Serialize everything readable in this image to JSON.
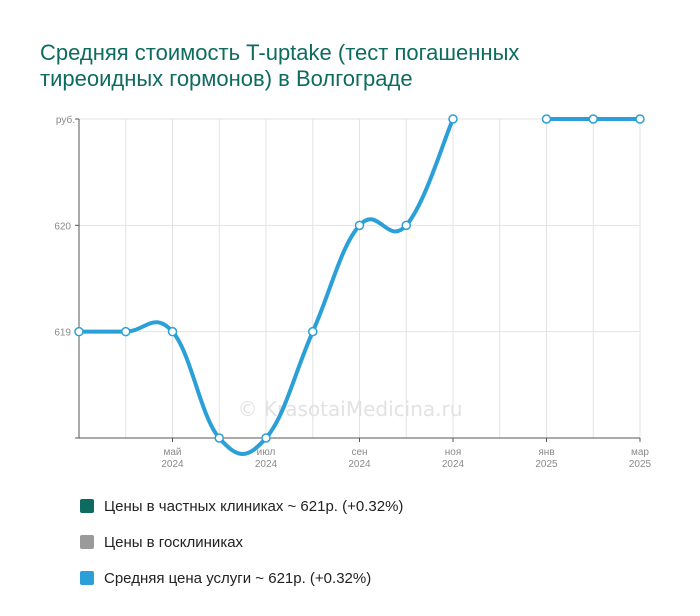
{
  "chart_data": {
    "type": "line",
    "title": "Средняя стоимость T-uptake (тест погашенных тиреоидных гормонов) в Волгограде",
    "ylabel": "руб.",
    "y_ticks": [
      "619",
      "620"
    ],
    "ylim": [
      618,
      621
    ],
    "x": [
      "2024-03",
      "2024-04",
      "2024-05",
      "2024-06",
      "2024-07",
      "2024-08",
      "2024-09",
      "2024-10",
      "2024-11",
      "2024-12",
      "2025-01",
      "2025-02",
      "2025-03"
    ],
    "x_tick_labels": [
      {
        "x": "2024-05",
        "month": "май",
        "year": "2024"
      },
      {
        "x": "2024-07",
        "month": "июл",
        "year": "2024"
      },
      {
        "x": "2024-09",
        "month": "сен",
        "year": "2024"
      },
      {
        "x": "2024-11",
        "month": "ноя",
        "year": "2024"
      },
      {
        "x": "2025-01",
        "month": "янв",
        "year": "2025"
      },
      {
        "x": "2025-03",
        "month": "мар",
        "year": "2025"
      }
    ],
    "series": [
      {
        "name": "Средняя цена услуги ~ 621р. (+0.32%)",
        "color": "#2a9fd8",
        "values": [
          619,
          619,
          619,
          618,
          618,
          619,
          620,
          620,
          621,
          null,
          621,
          621,
          621
        ]
      }
    ],
    "grid": true,
    "legend_position": "bottom-left"
  },
  "legend": [
    {
      "label": "Цены в частных клиниках ~ 621р. (+0.32%)",
      "color": "#0e6b5f"
    },
    {
      "label": "Цены в госклиниках",
      "color": "#9a9a9a"
    },
    {
      "label": "Средняя цена услуги ~ 621р. (+0.32%)",
      "color": "#2a9fd8"
    }
  ],
  "watermark": "© KrasotaiMedicina.ru"
}
